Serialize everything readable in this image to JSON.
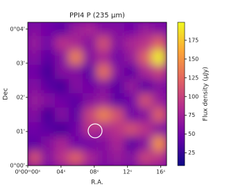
{
  "chart_data": {
    "type": "heatmap",
    "title": "PPI4 P (235 μm)",
    "xlabel": "R.A.",
    "ylabel": "Dec",
    "colorbar_label": "Flux density (μJy)",
    "colormap": [
      "#0d0887",
      "#6a00a8",
      "#b12a90",
      "#e16462",
      "#fca636",
      "#f0f921"
    ],
    "xlim": [
      0,
      16.7
    ],
    "ylim": [
      0,
      4.2
    ],
    "clim": [
      8,
      199
    ],
    "xticks": [
      {
        "value": 0,
        "label": "0ʰ00ᵐ00ˢ"
      },
      {
        "value": 4,
        "label": "04ˢ"
      },
      {
        "value": 8,
        "label": "08ˢ"
      },
      {
        "value": 12,
        "label": "12ˢ"
      },
      {
        "value": 16,
        "label": "16ˢ"
      }
    ],
    "yticks": [
      {
        "value": 0,
        "label": "0°00'"
      },
      {
        "value": 1,
        "label": "01'"
      },
      {
        "value": 2,
        "label": "02'"
      },
      {
        "value": 3,
        "label": "03'"
      },
      {
        "value": 4,
        "label": "0°04'"
      }
    ],
    "cticks": [
      25,
      50,
      75,
      100,
      125,
      150,
      175
    ],
    "z": [
      [
        60,
        50,
        40,
        70,
        80,
        60,
        60,
        50,
        70,
        60
      ],
      [
        70,
        50,
        90,
        80,
        60,
        110,
        60,
        80,
        90,
        120
      ],
      [
        60,
        40,
        60,
        140,
        60,
        80,
        50,
        70,
        120,
        195
      ],
      [
        50,
        30,
        60,
        60,
        40,
        130,
        60,
        40,
        80,
        100
      ],
      [
        60,
        40,
        30,
        60,
        50,
        60,
        40,
        70,
        40,
        60
      ],
      [
        70,
        60,
        50,
        40,
        60,
        70,
        40,
        50,
        110,
        70
      ],
      [
        60,
        30,
        60,
        40,
        100,
        140,
        110,
        50,
        60,
        120
      ],
      [
        50,
        40,
        30,
        50,
        90,
        80,
        90,
        110,
        90,
        60
      ],
      [
        40,
        60,
        80,
        50,
        50,
        60,
        80,
        40,
        60,
        150
      ],
      [
        110,
        60,
        90,
        120,
        80,
        60,
        70,
        60,
        100,
        90
      ]
    ]
  }
}
